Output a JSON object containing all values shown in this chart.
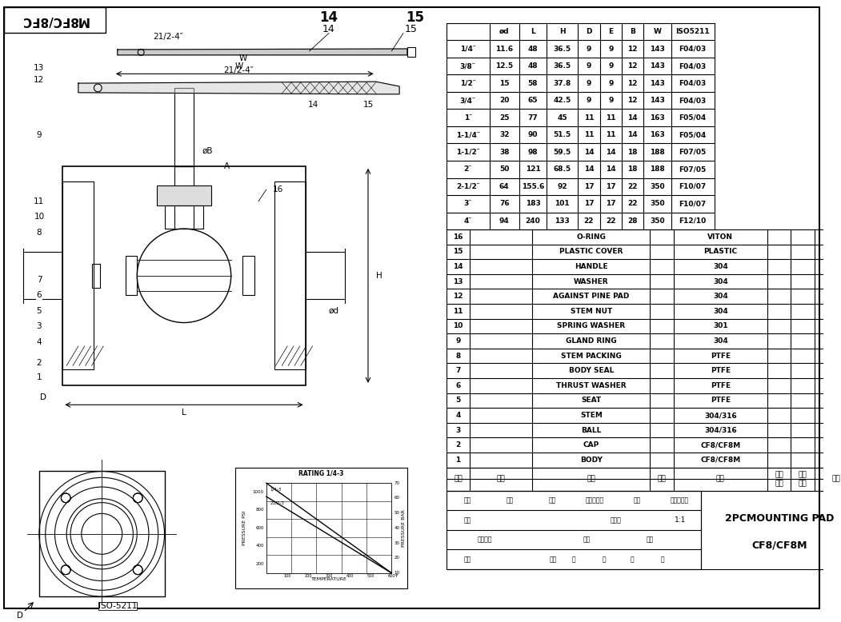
{
  "bg_color": "#ffffff",
  "line_color": "#000000",
  "title": "CF8/CF8M",
  "title_mirrored": "M8FC/8FC",
  "dim_table_headers": [
    "",
    "ød",
    "L",
    "H",
    "D",
    "E",
    "B",
    "W",
    "ISO5211"
  ],
  "dim_table_rows": [
    [
      "1/4″",
      "11.6",
      "48",
      "36.5",
      "9",
      "9",
      "12",
      "143",
      "F04/03"
    ],
    [
      "3/8″",
      "12.5",
      "48",
      "36.5",
      "9",
      "9",
      "12",
      "143",
      "F04/03"
    ],
    [
      "1/2″",
      "15",
      "58",
      "37.8",
      "9",
      "9",
      "12",
      "143",
      "F04/03"
    ],
    [
      "3/4″",
      "20",
      "65",
      "42.5",
      "9",
      "9",
      "12",
      "143",
      "F04/03"
    ],
    [
      "1″",
      "25",
      "77",
      "45",
      "11",
      "11",
      "14",
      "163",
      "F05/04"
    ],
    [
      "1-1/4″",
      "32",
      "90",
      "51.5",
      "11",
      "11",
      "14",
      "163",
      "F05/04"
    ],
    [
      "1-1/2″",
      "38",
      "98",
      "59.5",
      "14",
      "14",
      "18",
      "188",
      "F07/05"
    ],
    [
      "2″",
      "50",
      "121",
      "68.5",
      "14",
      "14",
      "18",
      "188",
      "F07/05"
    ],
    [
      "2-1/2″",
      "64",
      "155.6",
      "92",
      "17",
      "17",
      "22",
      "350",
      "F10/07"
    ],
    [
      "3″",
      "76",
      "183",
      "101",
      "17",
      "17",
      "22",
      "350",
      "F10/07"
    ],
    [
      "4″",
      "94",
      "240",
      "133",
      "22",
      "22",
      "28",
      "350",
      "F12/10"
    ]
  ],
  "parts_table_rows": [
    [
      "16",
      "",
      "O-RING",
      "",
      "VITON",
      "",
      "",
      ""
    ],
    [
      "15",
      "",
      "PLASTIC COVER",
      "",
      "PLASTIC",
      "",
      "",
      ""
    ],
    [
      "14",
      "",
      "HANDLE",
      "",
      "304",
      "",
      "",
      ""
    ],
    [
      "13",
      "",
      "WASHER",
      "",
      "304",
      "",
      "",
      ""
    ],
    [
      "12",
      "",
      "AGAINST PINE PAD",
      "",
      "304",
      "",
      "",
      ""
    ],
    [
      "11",
      "",
      "STEM NUT",
      "",
      "304",
      "",
      "",
      ""
    ],
    [
      "10",
      "",
      "SPRING WASHER",
      "",
      "301",
      "",
      "",
      ""
    ],
    [
      "9",
      "",
      "GLAND RING",
      "",
      "304",
      "",
      "",
      ""
    ],
    [
      "8",
      "",
      "STEM PACKING",
      "",
      "PTFE",
      "",
      "",
      ""
    ],
    [
      "7",
      "",
      "BODY SEAL",
      "",
      "PTFE",
      "",
      "",
      ""
    ],
    [
      "6",
      "",
      "THRUST WASHER",
      "",
      "PTFE",
      "",
      "",
      ""
    ],
    [
      "5",
      "",
      "SEAT",
      "",
      "PTFE",
      "",
      "",
      ""
    ],
    [
      "4",
      "",
      "STEM",
      "",
      "304/316",
      "",
      "",
      ""
    ],
    [
      "3",
      "",
      "BALL",
      "",
      "304/316",
      "",
      "",
      ""
    ],
    [
      "2",
      "",
      "CAP",
      "",
      "CF8/CF8M",
      "",
      "",
      ""
    ],
    [
      "1",
      "",
      "BODY",
      "",
      "CF8/CF8M",
      "",
      "",
      ""
    ]
  ],
  "parts_footer": [
    "序号",
    "代号",
    "名称",
    "数量",
    "材料",
    "单件重量",
    "总计重量",
    "备注"
  ],
  "rating_title": "RATING 1/4-3",
  "bottom_left_label": "ISO-5211",
  "product_title": "2PCMOUNTING PAD",
  "product_subtitle": "CF8/CF8M",
  "scale": "1:1",
  "drawing_labels": {
    "dim_W": "W",
    "dim_14": "14",
    "dim_15": "15",
    "dim_A": "A",
    "dim_phiB": "øB",
    "dim_H": "H",
    "dim_phid": "ød",
    "dim_L": "L",
    "dim_D": "D",
    "dim_handle_size": "21/2-4″",
    "num_14": "14",
    "num_15": "15",
    "num_16": "16"
  },
  "part_numbers_left": [
    "1",
    "2",
    "3",
    "4",
    "5",
    "6",
    "7",
    "8",
    "9",
    "10",
    "11",
    "12",
    "13"
  ],
  "footer_row1_labels": [
    "标记",
    "套数",
    "分区",
    "更改文件号",
    "签名",
    "年、月、日"
  ],
  "footer_row2_labels": [
    "设计",
    "标准化",
    "阶段标记",
    "重量",
    "比例"
  ],
  "footer_row3_labels": [
    "审核",
    "共",
    "张",
    "第",
    "张"
  ]
}
